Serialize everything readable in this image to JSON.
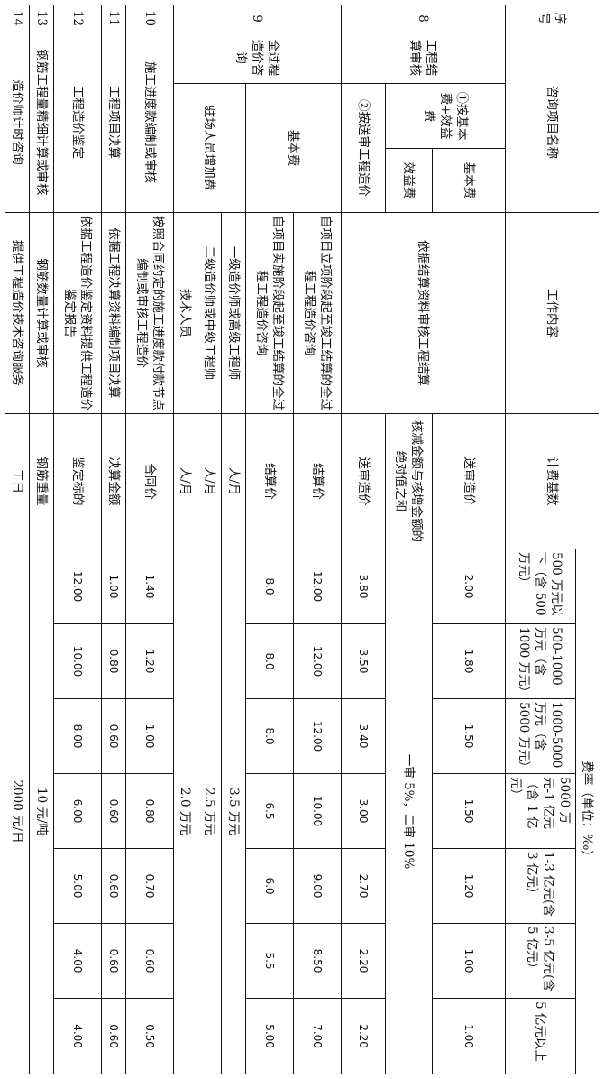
{
  "header": {
    "no": "序号",
    "name": "咨询项目名称",
    "work": "工作内容",
    "basis": "计费基数",
    "rate_title": "费率（单位：‰）",
    "rate_cols": [
      "500 万元以下（含 500 万元）",
      "500-1000 万元（含 1000 万元）",
      "1000-5000 万元（含 5000 万元）",
      "5000 万元-1 亿元（含 1 亿元）",
      "1-3 亿元(含 3 亿元）",
      "3-5 亿元(含 5 亿元）",
      "5 亿元以上"
    ]
  },
  "r8": {
    "no": "8",
    "name": "工程结算审核",
    "work": "依据结算资料审核工程结算",
    "m1": {
      "label": "①按基本费+效益费",
      "basic": {
        "label": "基本费",
        "basis": "送审造价",
        "rates": [
          "2.00",
          "1.80",
          "1.50",
          "1.50",
          "1.20",
          "1.00",
          "1.00"
        ]
      },
      "benefit": {
        "label": "效益费",
        "basis": "核减金额与核增金额的绝对值之和",
        "rate": "一审 5%，二审 10%"
      }
    },
    "m2": {
      "label": "②按送审工程造价",
      "basis": "送审造价",
      "rates": [
        "3.80",
        "3.50",
        "3.40",
        "3.00",
        "2.70",
        "2.20",
        "2.20"
      ]
    }
  },
  "r9": {
    "no": "9",
    "name": "全过程造价咨询",
    "basic": {
      "label": "基本费",
      "a": {
        "work": "自项目立项阶段起至竣工结算的全过程工程造价咨询",
        "basis": "结算价",
        "rates": [
          "12.00",
          "12.00",
          "12.00",
          "10.00",
          "9.00",
          "8.50",
          "7.00"
        ]
      },
      "b": {
        "work": "自项目实施阶段起至竣工结算的全过程工程造价咨询",
        "basis": "结算价",
        "rates": [
          "8.0",
          "8.0",
          "8.0",
          "6.5",
          "6.0",
          "5.5",
          "5.00"
        ]
      }
    },
    "onsite": {
      "label": "驻场人员增加费",
      "a": {
        "work": "一级造价师或高级工程师",
        "basis": "人/月",
        "rate": "3.5 万元"
      },
      "b": {
        "work": "二级造价师或中级工程师",
        "basis": "人/月",
        "rate": "2.5 万元"
      },
      "c": {
        "work": "技术人员",
        "basis": "人/月",
        "rate": "2.0 万元"
      }
    }
  },
  "r10": {
    "no": "10",
    "name": "施工进度款编制或审核",
    "work": "按照合同约定的施工进度款付款节点编制或审核工程造价",
    "basis": "合同价",
    "rates": [
      "1.40",
      "1.20",
      "1.00",
      "0.80",
      "0.70",
      "0.60",
      "0.50"
    ]
  },
  "r11": {
    "no": "11",
    "name": "工程项目决算",
    "work": "依据工程决算资料编制项目决算",
    "basis": "决算金额",
    "rates": [
      "1.00",
      "0.80",
      "0.60",
      "0.60",
      "0.60",
      "0.60",
      "0.60"
    ]
  },
  "r12": {
    "no": "12",
    "name": "工程造价鉴定",
    "work": "依据工程造价鉴定资料提供工程造价鉴定报告",
    "basis": "鉴定标的",
    "rates": [
      "12.00",
      "10.00",
      "8.00",
      "6.00",
      "5.00",
      "4.00",
      "4.00"
    ]
  },
  "r13": {
    "no": "13",
    "name": "钢筋工程量精细计算或审核",
    "work": "钢筋数量计算或审核",
    "basis": "钢筋重量",
    "rate": "10 元/吨"
  },
  "r14": {
    "no": "14",
    "name": "造价师计时咨询",
    "work": "提供工程造价技术咨询服务",
    "basis": "工日",
    "rate": "2000 元/日"
  }
}
